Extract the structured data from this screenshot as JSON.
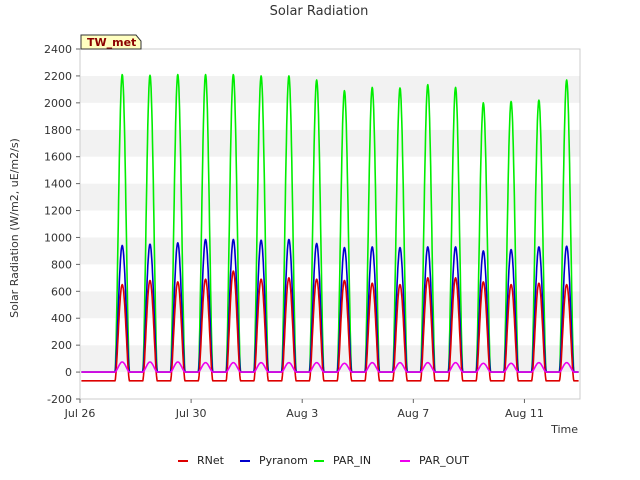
{
  "chart_data": {
    "type": "line",
    "title": "Solar Radiation",
    "xlabel": "Time",
    "ylabel": "Solar Radiation (W/m2, uE/m2/s)",
    "ylim": [
      -200,
      2400
    ],
    "yticks": [
      -200,
      0,
      200,
      400,
      600,
      800,
      1000,
      1200,
      1400,
      1600,
      1800,
      2000,
      2200,
      2400
    ],
    "xlim": [
      "Jul 26",
      "Aug 13"
    ],
    "xticks": [
      "Jul 26",
      "Jul 30",
      "Aug 3",
      "Aug 7",
      "Aug 11"
    ],
    "grid": "horizontal bands",
    "site_tag": "TW_met",
    "legend_position": "bottom",
    "day_dates": [
      "Jul 27",
      "Jul 28",
      "Jul 29",
      "Jul 30",
      "Jul 31",
      "Aug 1",
      "Aug 2",
      "Aug 3",
      "Aug 4",
      "Aug 5",
      "Aug 6",
      "Aug 7",
      "Aug 8",
      "Aug 9",
      "Aug 10",
      "Aug 11",
      "Aug 12"
    ],
    "series": [
      {
        "name": "RNet",
        "color": "#dd0000",
        "night_value": -65,
        "daily_peaks": [
          650,
          680,
          670,
          690,
          750,
          690,
          700,
          690,
          680,
          660,
          650,
          700,
          700,
          670,
          650,
          660,
          650
        ]
      },
      {
        "name": "Pyranom",
        "color": "#0000cc",
        "night_value": 0,
        "daily_peaks": [
          940,
          950,
          960,
          985,
          985,
          980,
          985,
          955,
          925,
          930,
          925,
          930,
          930,
          900,
          910,
          930,
          935
        ]
      },
      {
        "name": "PAR_IN",
        "color": "#00ee00",
        "night_value": 0,
        "daily_peaks": [
          2210,
          2205,
          2210,
          2210,
          2210,
          2200,
          2200,
          2170,
          2090,
          2115,
          2110,
          2135,
          2115,
          2000,
          2010,
          2020,
          2170
        ]
      },
      {
        "name": "PAR_OUT",
        "color": "#ee00ee",
        "night_value": 0,
        "daily_peaks": [
          75,
          75,
          75,
          70,
          70,
          70,
          70,
          70,
          65,
          70,
          70,
          70,
          70,
          65,
          65,
          70,
          70
        ]
      }
    ]
  }
}
